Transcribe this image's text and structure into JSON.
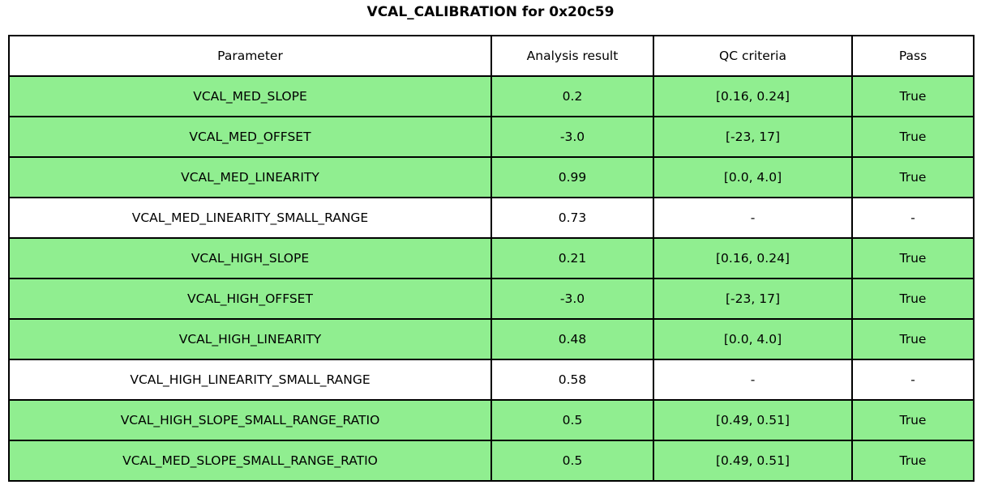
{
  "chart_data": {
    "type": "table",
    "title": "VCAL_CALIBRATION for 0x20c59",
    "columns": [
      "Parameter",
      "Analysis result",
      "QC criteria",
      "Pass"
    ],
    "rows": [
      {
        "cells": [
          "VCAL_MED_SLOPE",
          "0.2",
          "[0.16, 0.24]",
          "True"
        ],
        "highlighted": true
      },
      {
        "cells": [
          "VCAL_MED_OFFSET",
          "-3.0",
          "[-23, 17]",
          "True"
        ],
        "highlighted": true
      },
      {
        "cells": [
          "VCAL_MED_LINEARITY",
          "0.99",
          "[0.0, 4.0]",
          "True"
        ],
        "highlighted": true
      },
      {
        "cells": [
          "VCAL_MED_LINEARITY_SMALL_RANGE",
          "0.73",
          "-",
          "-"
        ],
        "highlighted": false
      },
      {
        "cells": [
          "VCAL_HIGH_SLOPE",
          "0.21",
          "[0.16, 0.24]",
          "True"
        ],
        "highlighted": true
      },
      {
        "cells": [
          "VCAL_HIGH_OFFSET",
          "-3.0",
          "[-23, 17]",
          "True"
        ],
        "highlighted": true
      },
      {
        "cells": [
          "VCAL_HIGH_LINEARITY",
          "0.48",
          "[0.0, 4.0]",
          "True"
        ],
        "highlighted": true
      },
      {
        "cells": [
          "VCAL_HIGH_LINEARITY_SMALL_RANGE",
          "0.58",
          "-",
          "-"
        ],
        "highlighted": false
      },
      {
        "cells": [
          "VCAL_HIGH_SLOPE_SMALL_RANGE_RATIO",
          "0.5",
          "[0.49, 0.51]",
          "True"
        ],
        "highlighted": true
      },
      {
        "cells": [
          "VCAL_MED_SLOPE_SMALL_RANGE_RATIO",
          "0.5",
          "[0.49, 0.51]",
          "True"
        ],
        "highlighted": true
      }
    ],
    "layout": {
      "legend": "none",
      "grid": "table-borders",
      "highlight_color": "#90EE90",
      "default_row_color": "#FFFFFF",
      "border_color": "#000000"
    }
  }
}
